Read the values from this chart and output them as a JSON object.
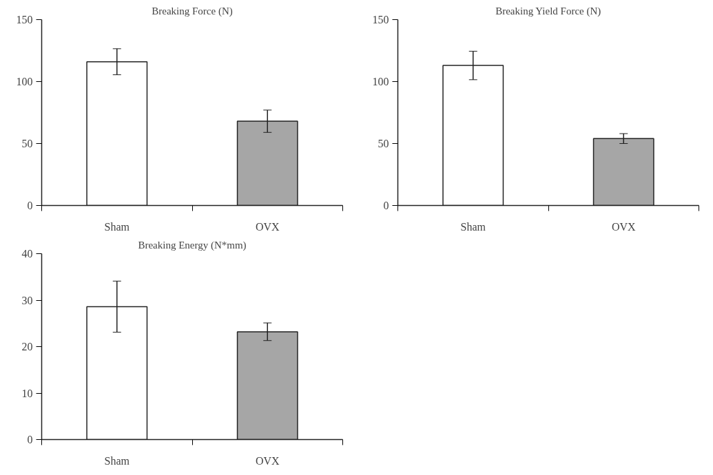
{
  "chart_data": [
    {
      "type": "bar",
      "title": "Breaking Force (N)",
      "categories": [
        "Sham",
        "OVX"
      ],
      "values": [
        116,
        68
      ],
      "colors": [
        "#ffffff",
        "#a6a6a6"
      ],
      "errors": [
        10.5,
        9
      ],
      "ylim": [
        0,
        150
      ],
      "yticks": [
        0,
        50,
        100,
        150
      ]
    },
    {
      "type": "bar",
      "title": "Breaking Yield Force (N)",
      "categories": [
        "Sham",
        "OVX"
      ],
      "values": [
        113,
        54
      ],
      "colors": [
        "#ffffff",
        "#a6a6a6"
      ],
      "errors": [
        11.5,
        4
      ],
      "ylim": [
        0,
        150
      ],
      "yticks": [
        0,
        50,
        100,
        150
      ]
    },
    {
      "type": "bar",
      "title": "Breaking Energy (N*mm)",
      "categories": [
        "Sham",
        "OVX"
      ],
      "values": [
        28.6,
        23.2
      ],
      "colors": [
        "#ffffff",
        "#a6a6a6"
      ],
      "errors": [
        5.5,
        1.9
      ],
      "ylim": [
        0,
        40
      ],
      "yticks": [
        0,
        10,
        20,
        30,
        40
      ]
    }
  ]
}
